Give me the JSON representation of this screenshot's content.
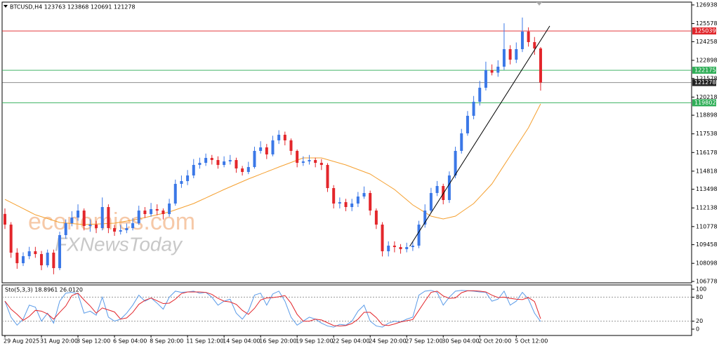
{
  "chart_data": [
    {
      "type": "candlestick",
      "title": "BTCUSD,H4  123763 123868 120691 121278",
      "categories": [
        "29 Aug 2025",
        null,
        null,
        null,
        null,
        null,
        "31 Aug 20:00",
        null,
        null,
        null,
        null,
        null,
        "3 Sep 12:00",
        null,
        null,
        null,
        null,
        null,
        "6 Sep 04:00",
        null,
        null,
        null,
        null,
        null,
        "8 Sep 20:00",
        null,
        null,
        null,
        null,
        null,
        "11 Sep 12:00",
        null,
        null,
        null,
        null,
        null,
        "14 Sep 04:00",
        null,
        null,
        null,
        null,
        null,
        "16 Sep 20:00",
        null,
        null,
        null,
        null,
        null,
        "19 Sep 12:00",
        null,
        null,
        null,
        null,
        null,
        "22 Sep 04:00",
        null,
        null,
        null,
        null,
        null,
        "24 Sep 20:00",
        null,
        null,
        null,
        null,
        null,
        "27 Sep 12:00",
        null,
        null,
        null,
        null,
        null,
        "30 Sep 04:00",
        null,
        null,
        null,
        null,
        null,
        "2 Oct 20:00",
        null,
        null,
        null,
        null,
        null,
        "5 Oct 12:00",
        null,
        null,
        null,
        null
      ],
      "open": [
        111700,
        110922,
        108875,
        108107,
        108619,
        108977,
        108773,
        107954,
        108875,
        107749,
        110154,
        111024,
        111433,
        111945,
        110819,
        110922,
        110666,
        112201,
        110666,
        110410,
        110512,
        110666,
        111024,
        111945,
        111689,
        112048,
        111945,
        111689,
        112457,
        113890,
        114094,
        114504,
        115271,
        115425,
        115783,
        115629,
        115271,
        115527,
        115629,
        115015,
        114760,
        115118,
        116295,
        116551,
        116039,
        117062,
        117472,
        117062,
        116295,
        115425,
        115527,
        115629,
        115425,
        115271,
        113583,
        112457,
        112559,
        112201,
        112457,
        112969,
        113224,
        111945,
        110922,
        108977,
        109387,
        109284,
        109131,
        109284,
        109387,
        110922,
        111945,
        113224,
        113736,
        112713,
        114504,
        116295,
        117574,
        118853,
        119877,
        120900,
        122179,
        122000,
        122435,
        123714,
        122947,
        123714,
        124994,
        124226,
        123763
      ],
      "high": [
        112100,
        111100,
        109200,
        108900,
        109300,
        109300,
        109000,
        109100,
        109100,
        110400,
        111300,
        111900,
        112400,
        112100,
        111300,
        111200,
        112900,
        112400,
        110900,
        110900,
        111000,
        111400,
        112300,
        112200,
        112500,
        112400,
        112100,
        112800,
        114200,
        114500,
        114900,
        115700,
        115800,
        116100,
        116000,
        115900,
        115900,
        116000,
        115800,
        115200,
        115500,
        116600,
        117000,
        116800,
        117400,
        117800,
        117700,
        117200,
        116400,
        115900,
        116000,
        115800,
        115700,
        115400,
        113800,
        112900,
        112800,
        112800,
        113300,
        113700,
        113400,
        112100,
        111100,
        109700,
        109700,
        109500,
        109600,
        109700,
        111200,
        112400,
        113600,
        114100,
        113900,
        114800,
        116600,
        117900,
        119200,
        120300,
        121400,
        122800,
        122600,
        122900,
        125600,
        124000,
        124200,
        126017,
        125300,
        124600,
        123868
      ],
      "low": [
        110600,
        108500,
        107700,
        107900,
        108400,
        108500,
        107600,
        107800,
        107300,
        107600,
        109900,
        110800,
        111200,
        110500,
        110400,
        110300,
        110500,
        110300,
        110100,
        110200,
        110300,
        110500,
        110900,
        111400,
        111500,
        111600,
        111300,
        111500,
        112300,
        113600,
        113800,
        114300,
        115000,
        115200,
        115300,
        115000,
        115100,
        115300,
        114700,
        114500,
        114600,
        115000,
        116100,
        115700,
        115900,
        116800,
        116700,
        116000,
        115100,
        115200,
        115300,
        115100,
        114900,
        113300,
        112100,
        112100,
        111900,
        111900,
        112200,
        112800,
        111600,
        110600,
        108600,
        108600,
        108900,
        108800,
        108900,
        109000,
        109200,
        110700,
        111800,
        113000,
        112400,
        112500,
        114300,
        116100,
        117400,
        118600,
        119600,
        120700,
        121800,
        121700,
        122200,
        122600,
        122700,
        123500,
        123900,
        123300,
        120691
      ],
      "close": [
        110922,
        108875,
        108107,
        108619,
        108977,
        108773,
        107954,
        108875,
        107749,
        110154,
        111024,
        111433,
        111945,
        110819,
        110922,
        110666,
        112201,
        110666,
        110410,
        110512,
        110666,
        111024,
        111945,
        111689,
        112048,
        111945,
        111689,
        112457,
        113890,
        114094,
        114504,
        115271,
        115425,
        115783,
        115629,
        115271,
        115527,
        115629,
        115015,
        114760,
        115118,
        116295,
        116551,
        116039,
        117062,
        117472,
        117062,
        116295,
        115425,
        115527,
        115629,
        115425,
        115271,
        113583,
        112457,
        112559,
        112201,
        112457,
        112969,
        113224,
        111945,
        110922,
        108977,
        109387,
        109284,
        109131,
        109284,
        109387,
        110922,
        111945,
        113224,
        113736,
        112713,
        114504,
        116295,
        117574,
        118853,
        119877,
        120900,
        122179,
        122000,
        122435,
        123714,
        122947,
        123714,
        124994,
        124226,
        123763,
        121278
      ],
      "up_color": "#3b78e7",
      "down_color": "#e3262b",
      "overlay": {
        "color": "#f5a030",
        "values": [
          112764,
          112539,
          112314,
          112088,
          111863,
          111638,
          111497,
          111356,
          111216,
          111075,
          111037,
          110999,
          110960,
          110922,
          110942,
          110963,
          110983,
          111004,
          111024,
          111101,
          111178,
          111254,
          111331,
          111433,
          111536,
          111638,
          111741,
          111843,
          111997,
          112150,
          112304,
          112457,
          112662,
          112866,
          113071,
          113275,
          113480,
          113672,
          113864,
          114056,
          114248,
          114422,
          114596,
          114770,
          114944,
          115118,
          115284,
          115450,
          115617,
          115783,
          115783,
          115783,
          115783,
          115655,
          115527,
          115399,
          115271,
          115105,
          114939,
          114772,
          114606,
          114325,
          114043,
          113762,
          113480,
          113105,
          112730,
          112355,
          112082,
          111809,
          111536,
          111434,
          111331,
          111434,
          111536,
          111843,
          112150,
          112457,
          112935,
          113412,
          113890,
          114572,
          115255,
          115937,
          116619,
          117301,
          117983,
          118853,
          119723
        ]
      },
      "trendline": {
        "color": "#000000",
        "points": [
          [
            66.5,
            109336
          ],
          [
            89.5,
            125403
          ]
        ]
      },
      "levels": [
        {
          "value": 125039,
          "color": "#e0262b"
        },
        {
          "value": 122175,
          "color": "#2fae57"
        },
        {
          "value": 121278,
          "color": "#222222"
        },
        {
          "value": 119802,
          "color": "#2fae57"
        }
      ],
      "ylim": [
        106778,
        126938
      ],
      "yticks": [
        106778,
        108098,
        109458,
        110778,
        112138,
        113498,
        114818,
        116178,
        117538,
        118898,
        120218,
        121578,
        122898,
        124258,
        125578,
        126938
      ],
      "watermarks": [
        "economies.com",
        "FXNewsToday"
      ]
    },
    {
      "type": "line",
      "title": "Sto(5,3,3) 18.8961 26.0120",
      "series": [
        {
          "color": "#5a9be8",
          "values": [
            70,
            30,
            10,
            25,
            60,
            55,
            20,
            40,
            15,
            70,
            90,
            92,
            88,
            40,
            45,
            35,
            80,
            30,
            20,
            25,
            40,
            60,
            85,
            70,
            78,
            65,
            50,
            80,
            95,
            92,
            93,
            95,
            90,
            92,
            80,
            60,
            70,
            75,
            40,
            25,
            45,
            85,
            90,
            60,
            88,
            95,
            70,
            30,
            10,
            20,
            30,
            25,
            15,
            8,
            5,
            12,
            10,
            20,
            45,
            60,
            20,
            8,
            5,
            15,
            20,
            18,
            25,
            30,
            85,
            95,
            97,
            92,
            60,
            80,
            95,
            97,
            96,
            95,
            93,
            92,
            70,
            75,
            95,
            60,
            70,
            92,
            75,
            40,
            18.8961
          ]
        },
        {
          "color": "#e3262b",
          "values": [
            70,
            50,
            37,
            22,
            32,
            47,
            45,
            38,
            25,
            42,
            58,
            84,
            90,
            73,
            58,
            40,
            53,
            48,
            43,
            25,
            28,
            42,
            62,
            72,
            78,
            71,
            64,
            65,
            75,
            89,
            93,
            93,
            93,
            92,
            87,
            77,
            70,
            68,
            62,
            47,
            37,
            52,
            73,
            78,
            79,
            81,
            84,
            65,
            37,
            20,
            20,
            25,
            23,
            16,
            9,
            8,
            9,
            14,
            25,
            42,
            42,
            29,
            11,
            9,
            13,
            18,
            21,
            24,
            47,
            70,
            92,
            95,
            83,
            77,
            78,
            91,
            96,
            96,
            95,
            93,
            85,
            79,
            80,
            77,
            75,
            74,
            79,
            69,
            26.012
          ]
        }
      ],
      "ylim": [
        0,
        100
      ],
      "yticks": [
        0,
        20,
        80,
        100
      ],
      "levels": [
        20,
        80
      ]
    }
  ]
}
